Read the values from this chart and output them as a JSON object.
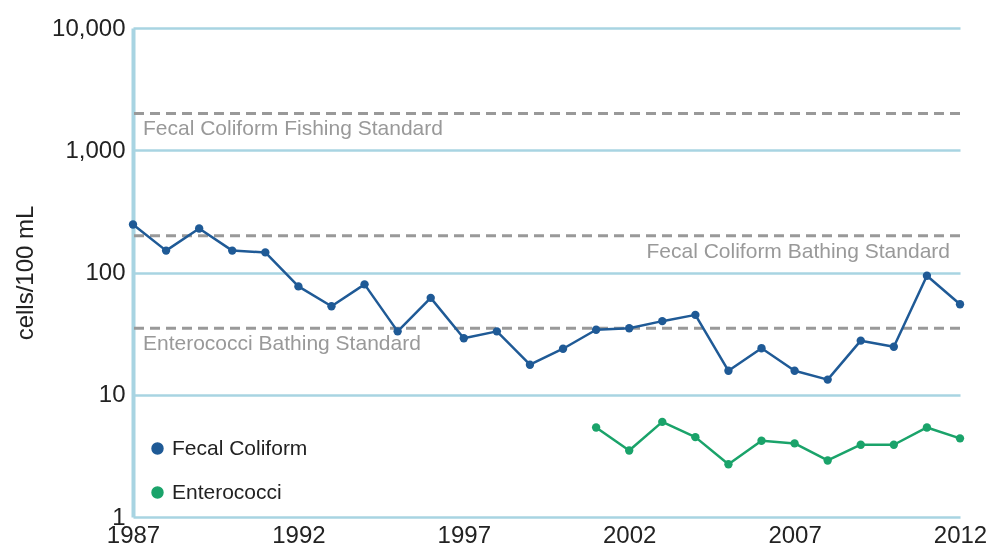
{
  "chart_data": {
    "type": "line",
    "ylabel": "cells/100 mL",
    "x": [
      1987,
      1988,
      1989,
      1990,
      1991,
      1992,
      1993,
      1994,
      1995,
      1996,
      1997,
      1998,
      1999,
      2000,
      2001,
      2002,
      2003,
      2004,
      2005,
      2006,
      2007,
      2008,
      2009,
      2010,
      2011,
      2012
    ],
    "series": [
      {
        "name": "Fecal Coliform",
        "color": "#1f5a96",
        "values": [
          247,
          151,
          229,
          151,
          146,
          77,
          53,
          80,
          33,
          62,
          29,
          33,
          17.6,
          23.8,
          34,
          35,
          40,
          45,
          15.7,
          24,
          15.7,
          13.3,
          27.7,
          24.7,
          94,
          55
        ]
      },
      {
        "name": "Enterococci",
        "color": "#1aa36a",
        "x": [
          2001,
          2002,
          2003,
          2004,
          2005,
          2006,
          2007,
          2008,
          2009,
          2010,
          2011,
          2012
        ],
        "values": [
          5.4,
          3.5,
          6.0,
          4.5,
          2.7,
          4.2,
          4.0,
          2.9,
          3.9,
          3.9,
          5.4,
          4.4
        ]
      }
    ],
    "xlim": [
      1987,
      2012
    ],
    "xticks": [
      1987,
      1992,
      1997,
      2002,
      2007,
      2012
    ],
    "ylim": [
      1,
      10000
    ],
    "yticks": [
      1,
      10,
      100,
      {
        "value": 1000,
        "label": "1,000"
      },
      {
        "value": 10000,
        "label": "10,000"
      }
    ],
    "log": "y",
    "grid": "y",
    "legend": "bottom left",
    "marker": "circle",
    "line_style": "solid",
    "ref_lines": [
      {
        "axis": "y",
        "value": 2000,
        "label": "Fecal Coliform Fishing Standard",
        "color": "#999999",
        "line_style": "dashed"
      },
      {
        "axis": "y",
        "value": 200,
        "label": "Fecal Coliform Bathing Standard",
        "color": "#999999",
        "line_style": "dashed"
      },
      {
        "axis": "y",
        "value": 35,
        "label": "Enterococci Bathing Standard",
        "color": "#999999",
        "line_style": "dashed"
      }
    ]
  }
}
